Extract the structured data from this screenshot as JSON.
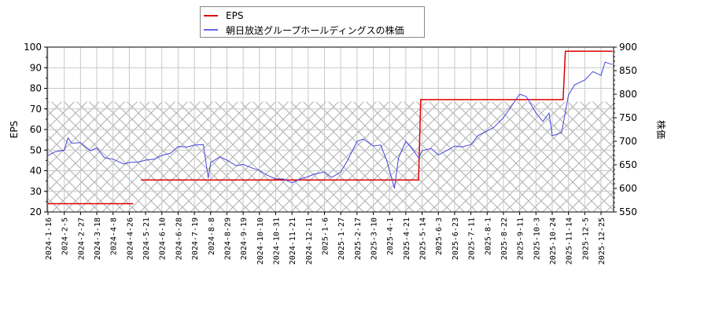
{
  "legend": {
    "items": [
      {
        "label": "EPS",
        "color": "#dd0000"
      },
      {
        "label": "朝日放送グループホールディングスの株価",
        "color": "#4444dd"
      }
    ]
  },
  "chart_data": {
    "type": "line",
    "title": "",
    "xlabel": "",
    "ylabel_left": "EPS",
    "ylabel_right": "株価",
    "grid": true,
    "legend_position": "top-center",
    "x_tick_labels": [
      "2024-1-16",
      "2024-2-5",
      "2024-2-27",
      "2024-3-18",
      "2024-4-8",
      "2024-4-26",
      "2024-5-21",
      "2024-6-10",
      "2024-6-28",
      "2024-7-19",
      "2024-8-8",
      "2024-8-29",
      "2024-9-19",
      "2024-10-10",
      "2024-10-31",
      "2024-11-21",
      "2024-12-11",
      "2025-1-6",
      "2025-1-27",
      "2025-2-17",
      "2025-3-10",
      "2025-4-1",
      "2025-4-21",
      "2025-5-14",
      "2025-6-3",
      "2025-6-23",
      "2025-7-11",
      "2025-8-1",
      "2025-8-22",
      "2025-9-11",
      "2025-10-3",
      "2025-10-24",
      "2025-11-14",
      "2025-12-5",
      "2025-12-25"
    ],
    "y_left": {
      "label": "EPS",
      "ylim": [
        20,
        100
      ],
      "ticks": [
        20,
        30,
        40,
        50,
        60,
        70,
        80,
        90,
        100
      ]
    },
    "y_right": {
      "label": "株価",
      "ylim": [
        550,
        900
      ],
      "ticks": [
        550,
        600,
        650,
        700,
        750,
        800,
        850,
        900
      ]
    },
    "series": [
      {
        "name": "EPS",
        "axis": "left",
        "color": "#dd0000",
        "points": [
          {
            "x": "2024-1-16",
            "y": 24
          },
          {
            "x": "2024-5-2",
            "y": 24
          },
          {
            "x": "2024-5-14",
            "y": 35.5
          },
          {
            "x": "2025-5-9",
            "y": 35.5
          },
          {
            "x": "2025-5-12",
            "y": 74.5
          },
          {
            "x": "2025-11-7",
            "y": 74.5
          },
          {
            "x": "2025-11-10",
            "y": 98
          },
          {
            "x": "2026-1-8",
            "y": 98
          }
        ]
      },
      {
        "name": "朝日放送グループホールディングスの株価",
        "axis": "right",
        "color": "#4444dd",
        "points": [
          {
            "x": "2024-1-16",
            "y": 670
          },
          {
            "x": "2024-1-25",
            "y": 678
          },
          {
            "x": "2024-2-5",
            "y": 681
          },
          {
            "x": "2024-2-10",
            "y": 707
          },
          {
            "x": "2024-2-15",
            "y": 696
          },
          {
            "x": "2024-2-27",
            "y": 697
          },
          {
            "x": "2024-3-10",
            "y": 680
          },
          {
            "x": "2024-3-18",
            "y": 686
          },
          {
            "x": "2024-3-28",
            "y": 665
          },
          {
            "x": "2024-4-8",
            "y": 662
          },
          {
            "x": "2024-4-20",
            "y": 652
          },
          {
            "x": "2024-4-26",
            "y": 655
          },
          {
            "x": "2024-5-10",
            "y": 656
          },
          {
            "x": "2024-5-21",
            "y": 660
          },
          {
            "x": "2024-6-1",
            "y": 662
          },
          {
            "x": "2024-6-10",
            "y": 670
          },
          {
            "x": "2024-6-20",
            "y": 675
          },
          {
            "x": "2024-6-28",
            "y": 689
          },
          {
            "x": "2024-7-10",
            "y": 688
          },
          {
            "x": "2024-7-19",
            "y": 692
          },
          {
            "x": "2024-7-30",
            "y": 693
          },
          {
            "x": "2024-8-5",
            "y": 622
          },
          {
            "x": "2024-8-8",
            "y": 655
          },
          {
            "x": "2024-8-20",
            "y": 667
          },
          {
            "x": "2024-8-29",
            "y": 660
          },
          {
            "x": "2024-9-10",
            "y": 648
          },
          {
            "x": "2024-9-19",
            "y": 651
          },
          {
            "x": "2024-10-1",
            "y": 643
          },
          {
            "x": "2024-10-10",
            "y": 638
          },
          {
            "x": "2024-10-20",
            "y": 628
          },
          {
            "x": "2024-10-31",
            "y": 620
          },
          {
            "x": "2024-11-10",
            "y": 620
          },
          {
            "x": "2024-11-21",
            "y": 612
          },
          {
            "x": "2024-12-1",
            "y": 620
          },
          {
            "x": "2024-12-11",
            "y": 625
          },
          {
            "x": "2024-12-20",
            "y": 630
          },
          {
            "x": "2025-1-6",
            "y": 635
          },
          {
            "x": "2025-1-15",
            "y": 623
          },
          {
            "x": "2025-1-27",
            "y": 635
          },
          {
            "x": "2025-2-5",
            "y": 660
          },
          {
            "x": "2025-2-17",
            "y": 700
          },
          {
            "x": "2025-2-25",
            "y": 705
          },
          {
            "x": "2025-3-10",
            "y": 690
          },
          {
            "x": "2025-3-20",
            "y": 692
          },
          {
            "x": "2025-3-28",
            "y": 660
          },
          {
            "x": "2025-4-7",
            "y": 600
          },
          {
            "x": "2025-4-12",
            "y": 665
          },
          {
            "x": "2025-4-21",
            "y": 700
          },
          {
            "x": "2025-5-1",
            "y": 682
          },
          {
            "x": "2025-5-9",
            "y": 665
          },
          {
            "x": "2025-5-14",
            "y": 680
          },
          {
            "x": "2025-5-25",
            "y": 685
          },
          {
            "x": "2025-6-3",
            "y": 671
          },
          {
            "x": "2025-6-15",
            "y": 682
          },
          {
            "x": "2025-6-23",
            "y": 690
          },
          {
            "x": "2025-7-1",
            "y": 688
          },
          {
            "x": "2025-7-11",
            "y": 693
          },
          {
            "x": "2025-7-20",
            "y": 712
          },
          {
            "x": "2025-8-1",
            "y": 722
          },
          {
            "x": "2025-8-10",
            "y": 730
          },
          {
            "x": "2025-8-22",
            "y": 750
          },
          {
            "x": "2025-9-1",
            "y": 775
          },
          {
            "x": "2025-9-11",
            "y": 800
          },
          {
            "x": "2025-9-20",
            "y": 795
          },
          {
            "x": "2025-10-3",
            "y": 760
          },
          {
            "x": "2025-10-12",
            "y": 742
          },
          {
            "x": "2025-10-20",
            "y": 760
          },
          {
            "x": "2025-10-24",
            "y": 712
          },
          {
            "x": "2025-11-5",
            "y": 718
          },
          {
            "x": "2025-11-14",
            "y": 798
          },
          {
            "x": "2025-11-22",
            "y": 820
          },
          {
            "x": "2025-12-5",
            "y": 830
          },
          {
            "x": "2025-12-15",
            "y": 848
          },
          {
            "x": "2025-12-25",
            "y": 840
          },
          {
            "x": "2025-12-30",
            "y": 868
          },
          {
            "x": "2026-1-8",
            "y": 863
          }
        ]
      }
    ]
  }
}
